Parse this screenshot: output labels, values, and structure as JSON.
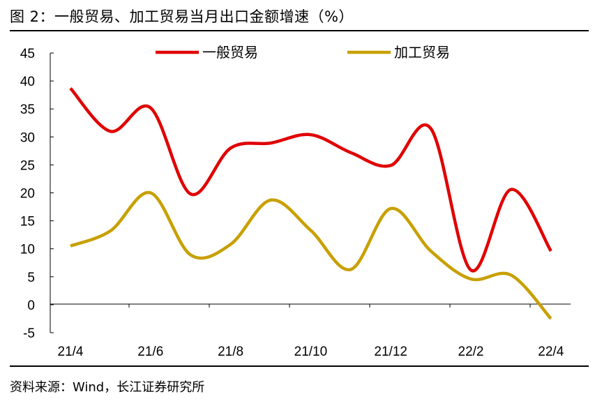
{
  "page": {
    "title": "图 2：一般贸易、加工贸易当月出口金额增速（%）",
    "source": "资料来源：Wind，长江证券研究所"
  },
  "chart_data": {
    "type": "line",
    "title": "一般贸易、加工贸易当月出口金额增速（%）",
    "xlabel": "",
    "ylabel": "",
    "ylim": [
      -5,
      45
    ],
    "yticks": [
      -5,
      0,
      5,
      10,
      15,
      20,
      25,
      30,
      35,
      40,
      45
    ],
    "categories": [
      "21/4",
      "21/5",
      "21/6",
      "21/7",
      "21/8",
      "21/9",
      "21/10",
      "21/11",
      "21/12",
      "22/1",
      "22/2",
      "22/3",
      "22/4"
    ],
    "tick_labels": [
      "21/4",
      "21/6",
      "21/8",
      "21/10",
      "21/12",
      "22/2",
      "22/4"
    ],
    "legend_position": "top",
    "series": [
      {
        "name": "一般贸易",
        "color": "#e00000",
        "values": [
          38.7,
          31.0,
          35.2,
          19.8,
          28.0,
          28.9,
          30.4,
          27.2,
          24.9,
          31.5,
          6.2,
          20.6,
          9.6
        ]
      },
      {
        "name": "加工贸易",
        "color": "#c8a000",
        "values": [
          10.5,
          13.2,
          20.0,
          8.9,
          10.8,
          18.7,
          13.3,
          6.3,
          17.2,
          9.6,
          4.6,
          5.3,
          -2.5
        ]
      }
    ]
  }
}
